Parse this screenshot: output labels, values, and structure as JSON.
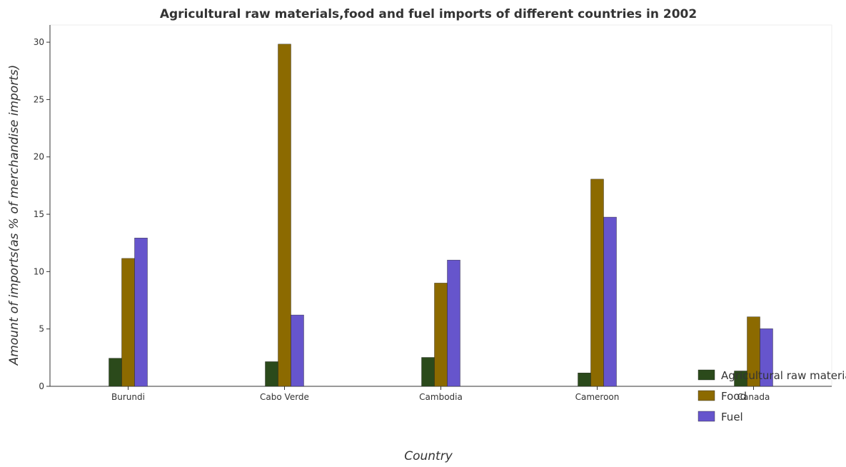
{
  "chart_data": {
    "type": "bar",
    "title": "Agricultural raw materials,food and fuel imports of different countries in 2002",
    "xlabel": "Country",
    "ylabel": "Amount of imports(as % of merchandise imports)",
    "categories": [
      "Burundi",
      "Cabo Verde",
      "Cambodia",
      "Cameroon",
      "Canada"
    ],
    "series": [
      {
        "name": "Agricultural raw materials",
        "color": "#2b4a1b",
        "values": [
          2.45,
          2.15,
          2.52,
          1.17,
          1.34
        ]
      },
      {
        "name": "Food",
        "color": "#8c6a00",
        "values": [
          11.15,
          29.83,
          9.0,
          18.06,
          6.06
        ]
      },
      {
        "name": "Fuel",
        "color": "#6655cc",
        "values": [
          12.93,
          6.22,
          11.01,
          14.75,
          5.02
        ]
      }
    ],
    "ylim": [
      0,
      31.5
    ],
    "yticks": [
      "0",
      "5",
      "10",
      "15",
      "20",
      "25",
      "30"
    ],
    "grid": false,
    "legend_position": "bottom-right"
  }
}
